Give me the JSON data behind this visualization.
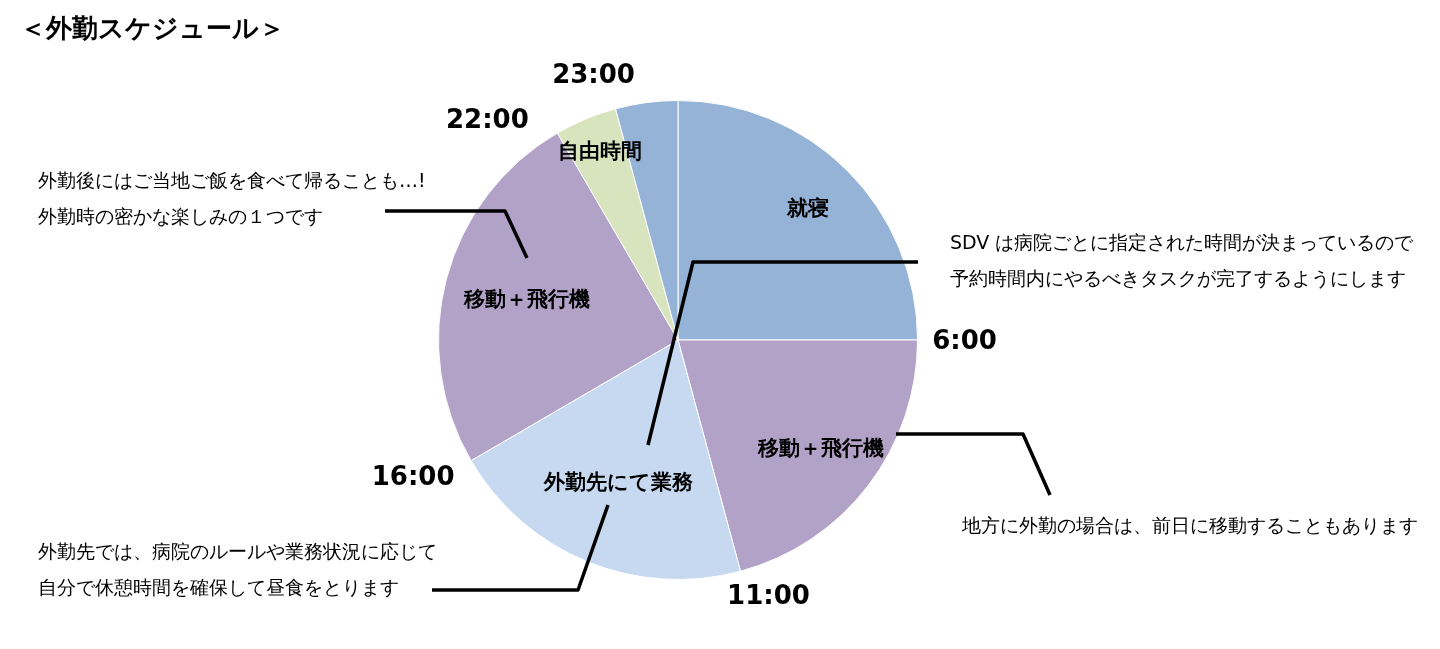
{
  "chart_data": {
    "type": "pie",
    "title": "＜外勤スケジュール＞",
    "categories": [
      "就寝",
      "移動＋飛行機",
      "外勤先にて業務",
      "移動＋飛行機",
      "自由時間",
      null
    ],
    "values": [
      25,
      20.8,
      20.8,
      25,
      4.2,
      4.2
    ],
    "colors": [
      "#95b3d7",
      "#b3a2c7",
      "#c6d9f1",
      "#b3a2c7",
      "#d7e4bd",
      "#95b3d7"
    ],
    "annotations": [
      "6:00",
      "11:00",
      "16:00",
      "22:00",
      "23:00",
      "外勤後にはご当地ご飯を食べて帰ることも…!外勤時の密かな楽しみの１つです",
      "SDV は病院ごとに指定された時間が決まっているので予約時間内にやるべきタスクが完了するようにします",
      "地方に外勤の場合は、前日に移動することもあります",
      "外勤先では、病院のルールや業務状況に応じて自分で休憩時間を確保して昼食をとります"
    ],
    "legend": false
  }
}
